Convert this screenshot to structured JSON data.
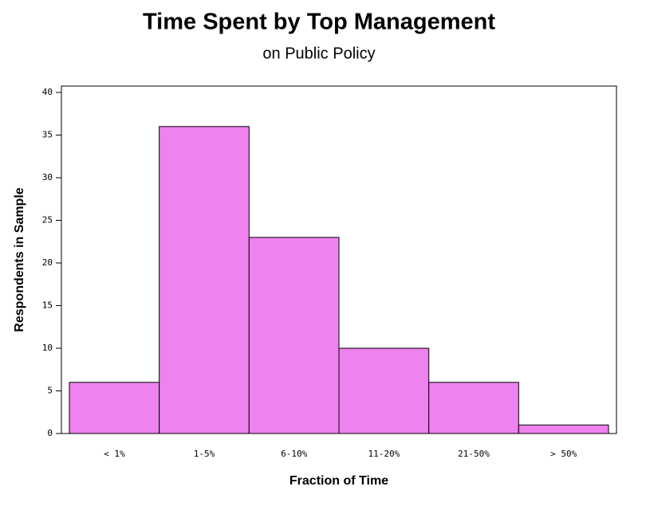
{
  "chart_data": {
    "type": "bar",
    "title": "Time Spent by Top Management",
    "subtitle": "on Public Policy",
    "x_label": "Fraction of Time",
    "y_label": "Respondents in Sample",
    "categories": [
      "< 1%",
      "1-5%",
      "6-10%",
      "11-20%",
      "21-50%",
      "> 50%"
    ],
    "values": [
      6,
      36,
      23,
      10,
      6,
      1
    ],
    "color": "#ee82ee",
    "ylim": [
      0,
      40
    ],
    "yticks": [
      0,
      5,
      10,
      15,
      20,
      25,
      30,
      35,
      40
    ],
    "grid": false
  }
}
